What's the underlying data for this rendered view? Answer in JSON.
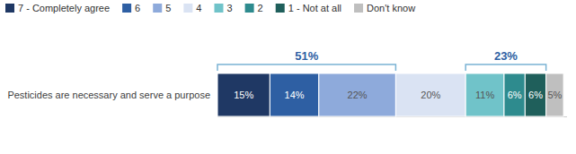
{
  "chart_data": {
    "type": "bar",
    "orientation": "horizontal",
    "stacked": true,
    "data_labels": true,
    "tick_labels": "y",
    "legend": "top",
    "categories": [
      "Pesticides are necessary and serve a purpose"
    ],
    "xlim": [
      0,
      100
    ],
    "series": [
      {
        "name": "7 - Completely agree",
        "color": "#1f3864",
        "values": [
          15
        ],
        "value_labels": [
          "15%"
        ]
      },
      {
        "name": "6",
        "color": "#2e5fa3",
        "values": [
          14
        ],
        "value_labels": [
          "14%"
        ]
      },
      {
        "name": "5",
        "color": "#8eaadb",
        "values": [
          22
        ],
        "value_labels": [
          "22%"
        ]
      },
      {
        "name": "4",
        "color": "#dae3f3",
        "values": [
          20
        ],
        "value_labels": [
          "20%"
        ]
      },
      {
        "name": "3",
        "color": "#70c3c9",
        "values": [
          11
        ],
        "value_labels": [
          "11%"
        ]
      },
      {
        "name": "2",
        "color": "#2e8b8e",
        "values": [
          6
        ],
        "value_labels": [
          "6%"
        ]
      },
      {
        "name": "1 - Not at all",
        "color": "#1f5f5b",
        "values": [
          6
        ],
        "value_labels": [
          "6%"
        ]
      },
      {
        "name": "Don't know",
        "color": "#bfbfbf",
        "values": [
          5
        ],
        "value_labels": [
          "5%"
        ]
      }
    ],
    "annotations": [
      {
        "text": "51%",
        "value": 51,
        "start": 0,
        "end": 51,
        "color": "#2e5fa3",
        "bracket_color": "#7ab3d4"
      },
      {
        "text": "23%",
        "value": 23,
        "start": 71,
        "end": 94,
        "color": "#2e5fa3",
        "bracket_color": "#7ab3d4"
      }
    ]
  }
}
